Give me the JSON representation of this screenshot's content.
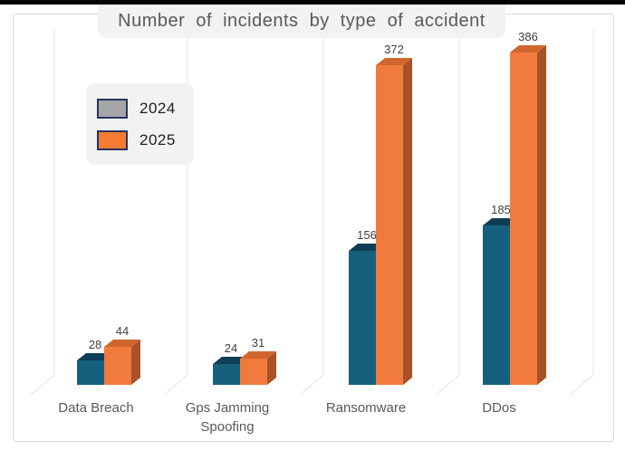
{
  "chart_data": {
    "type": "bar",
    "style": "3d-column",
    "title": "Number of incidents by type of accident",
    "categories": [
      "Data Breach",
      "Gps Jamming Spoofing",
      "Ransomware",
      "DDos"
    ],
    "category_label_lines": [
      [
        "Data Breach"
      ],
      [
        "Gps Jamming",
        "Spoofing"
      ],
      [
        "Ransomware"
      ],
      [
        "DDos"
      ]
    ],
    "series": [
      {
        "name": "2024",
        "values": [
          28,
          24,
          156,
          185
        ]
      },
      {
        "name": "2025",
        "values": [
          44,
          31,
          372,
          386
        ]
      }
    ],
    "data_labels_shown": true,
    "legend_position": "upper-left",
    "axes": "no visible value axis; vertical category separator gridlines with 3D floor bends",
    "ylim": [
      0,
      400
    ]
  },
  "colors": {
    "bar_2024_front": "#16607e",
    "bar_2024_top": "#0f3d55",
    "bar_2024_side": "#114e68",
    "bar_2025_front": "#f17b3c",
    "bar_2025_top": "#d0662e",
    "bar_2025_side": "#a8522a",
    "legend_2024_swatch": "#a6a6a6",
    "legend_2025_swatch": "#f47b31",
    "swatch_border": "#24365e",
    "title_text": "#595959",
    "category_text": "#595959",
    "value_label_text": "#3f3f3f",
    "pill_background": "#f2f2f2",
    "frame_border": "#d8d8d8",
    "gridline": "#e3e3e3",
    "top_edge": "#050505"
  }
}
